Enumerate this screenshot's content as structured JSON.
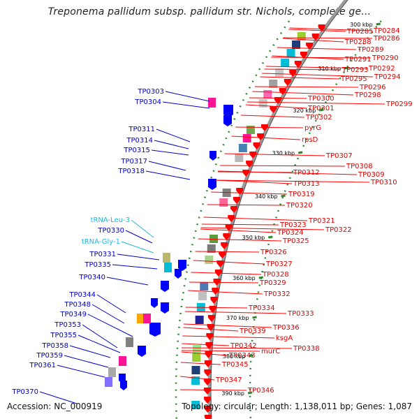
{
  "title": "Treponema pallidum subsp. pallidum str. Nichols, complete ge...",
  "footer": {
    "accession": "Accession: NC_000919",
    "info": "Topology: circular; Length: 1,138,011 bp; Genes: 1,087"
  },
  "colors": {
    "forward": "#ff0000",
    "reverse": "#0000ff",
    "rna": "#00bcd4",
    "tick": "#2e8b2e",
    "backbone": "#888888"
  },
  "ticks": [
    "300 kbp",
    "310 kbp",
    "320 kbp",
    "330 kbp",
    "340 kbp",
    "350 kbp",
    "360 kbp",
    "370 kbp",
    "380 kbp",
    "390 kbp"
  ],
  "right_labels": [
    "TP0284",
    "TP0285",
    "TP0286",
    "TP0288",
    "TP0289",
    "TP0290",
    "TP0291",
    "TP0292",
    "TP0293",
    "TP0294",
    "TP0295",
    "TP0296",
    "TP0298",
    "TP0299",
    "TP0300",
    "TP0301",
    "TP0302",
    "pyrG",
    "rpsD",
    "TP0307",
    "TP0308",
    "TP0309",
    "TP0310",
    "TP0312",
    "TP0313",
    "TP0319",
    "TP0320",
    "TP0321",
    "TP0322",
    "TP0323",
    "TP0324",
    "TP0325",
    "TP0326",
    "TP0327",
    "TP0328",
    "TP0329",
    "TP0332",
    "TP0333",
    "TP0334",
    "TP0336",
    "ksgA",
    "TP0338",
    "TP0339",
    "TP0342",
    "murC",
    "TP0343",
    "TP0345",
    "TP0346",
    "TP0347"
  ],
  "left_labels": [
    "TP0303",
    "TP0304",
    "TP0311",
    "TP0314",
    "TP0315",
    "TP0317",
    "TP0318",
    "tRNA-Leu-3",
    "TP0330",
    "tRNA-Gly-1",
    "TP0331",
    "TP0335",
    "TP0340",
    "TP0344",
    "TP0348",
    "TP0349",
    "TP0353",
    "TP0355",
    "TP0358",
    "TP0359",
    "TP0361",
    "TP0370"
  ]
}
